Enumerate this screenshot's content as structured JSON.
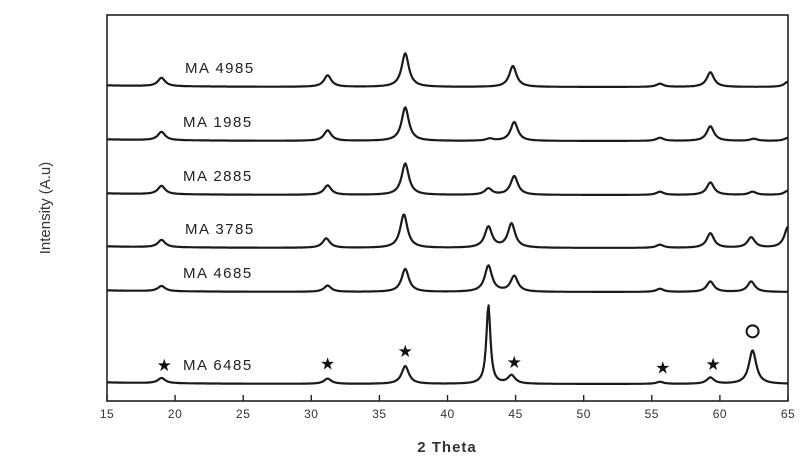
{
  "chart_data": {
    "type": "line",
    "title": "",
    "xlabel": "2 Theta",
    "ylabel": "Intensity (A.u)",
    "xlim": [
      15,
      65
    ],
    "xticks": [
      15,
      20,
      25,
      30,
      35,
      40,
      45,
      50,
      55,
      60,
      65
    ],
    "yticks": [],
    "legend": "none",
    "grid": false,
    "series": [
      {
        "name": "MA 4985",
        "baseline": 5,
        "peaks": [
          [
            19.0,
            0.8
          ],
          [
            31.2,
            1.1
          ],
          [
            36.9,
            3.2
          ],
          [
            44.8,
            2.0
          ],
          [
            55.6,
            0.3
          ],
          [
            59.3,
            1.4
          ],
          [
            65.0,
            0.5
          ]
        ]
      },
      {
        "name": "MA 1985",
        "baseline": 4,
        "peaks": [
          [
            19.0,
            0.8
          ],
          [
            31.2,
            1.0
          ],
          [
            36.9,
            3.2
          ],
          [
            43.1,
            0.2
          ],
          [
            44.9,
            1.8
          ],
          [
            55.6,
            0.3
          ],
          [
            59.3,
            1.4
          ],
          [
            62.5,
            0.2
          ],
          [
            65.0,
            0.3
          ]
        ]
      },
      {
        "name": "MA 2885",
        "baseline": 3,
        "peaks": [
          [
            19.0,
            0.8
          ],
          [
            31.2,
            0.9
          ],
          [
            36.9,
            3.0
          ],
          [
            43.0,
            0.6
          ],
          [
            44.9,
            1.8
          ],
          [
            55.6,
            0.3
          ],
          [
            59.3,
            1.2
          ],
          [
            62.4,
            0.3
          ],
          [
            65.0,
            0.4
          ]
        ]
      },
      {
        "name": "MA 3785",
        "baseline": 2,
        "peaks": [
          [
            19.0,
            0.7
          ],
          [
            31.1,
            0.9
          ],
          [
            36.8,
            3.2
          ],
          [
            43.0,
            2.0
          ],
          [
            44.7,
            2.3
          ],
          [
            55.6,
            0.3
          ],
          [
            59.3,
            1.4
          ],
          [
            62.3,
            1.0
          ],
          [
            65.0,
            2.0
          ]
        ]
      },
      {
        "name": "MA 4685",
        "baseline": 1,
        "peaks": [
          [
            19.0,
            0.5
          ],
          [
            31.2,
            0.6
          ],
          [
            36.9,
            2.2
          ],
          [
            43.0,
            2.5
          ],
          [
            44.9,
            1.5
          ],
          [
            55.6,
            0.3
          ],
          [
            59.3,
            1.0
          ],
          [
            62.3,
            1.0
          ]
        ]
      },
      {
        "name": "MA 6485",
        "baseline": 0,
        "peaks": [
          [
            19.0,
            0.5
          ],
          [
            31.2,
            0.5
          ],
          [
            36.9,
            1.7
          ],
          [
            43.0,
            7.5
          ],
          [
            44.7,
            0.8
          ],
          [
            55.6,
            0.2
          ],
          [
            59.3,
            0.6
          ],
          [
            62.4,
            3.2
          ]
        ]
      }
    ],
    "annotations": [
      {
        "symbol": "★",
        "x": 19.2
      },
      {
        "symbol": "★",
        "x": 31.2
      },
      {
        "symbol": "★",
        "x": 36.9
      },
      {
        "symbol": "★",
        "x": 44.9
      },
      {
        "symbol": "★",
        "x": 55.8
      },
      {
        "symbol": "★",
        "x": 59.5
      },
      {
        "symbol": "O",
        "x": 62.4
      }
    ]
  }
}
